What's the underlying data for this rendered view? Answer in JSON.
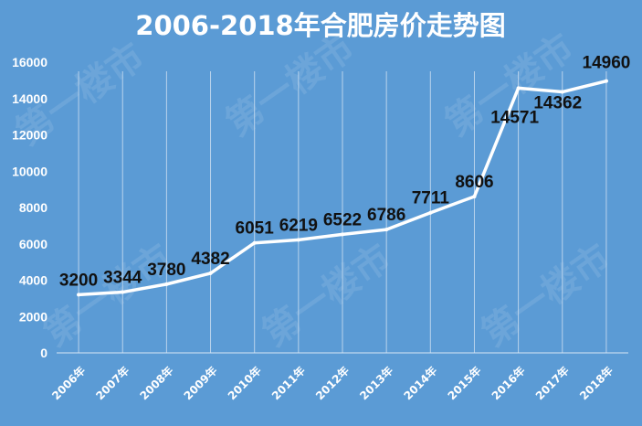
{
  "chart_data": {
    "type": "line",
    "title": "2006-2018年合肥房价走势图",
    "categories": [
      "2006年",
      "2007年",
      "2008年",
      "2009年",
      "2010年",
      "2011年",
      "2012年",
      "2013年",
      "2014年",
      "2015年",
      "2016年",
      "2017年",
      "2018年"
    ],
    "series": [
      {
        "values": [
          3200,
          3344,
          3780,
          4382,
          6051,
          6219,
          6522,
          6786,
          7711,
          8606,
          14571,
          14362,
          14960
        ]
      }
    ],
    "ylim": [
      0,
      16000
    ],
    "yticks": [
      0,
      2000,
      4000,
      6000,
      8000,
      10000,
      12000,
      14000,
      16000
    ],
    "xlabel": "",
    "ylabel": "",
    "grid": "vertical",
    "data_labels": true,
    "colors": {
      "background": "#5b9bd5",
      "line": "#ffffff",
      "label": "#111111"
    }
  }
}
